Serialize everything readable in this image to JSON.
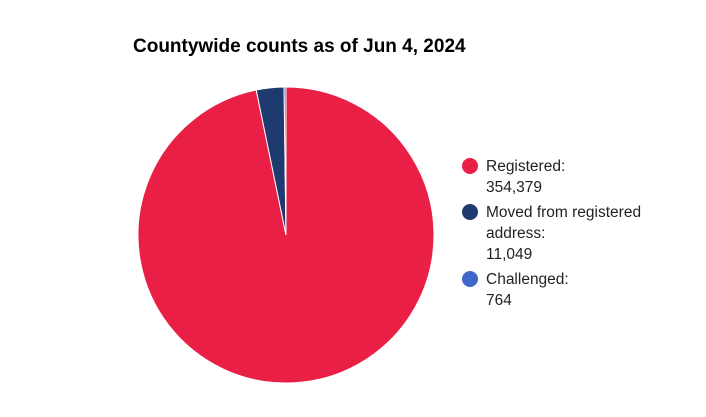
{
  "chart_data": {
    "type": "pie",
    "title": "Countywide counts as of Jun 4, 2024",
    "legend_position": "right",
    "slices": [
      {
        "label": "Registered:",
        "value": 354379,
        "display": "354,379",
        "color": "#ea1f45"
      },
      {
        "label": "Moved from registered address:",
        "value": 11049,
        "display": "11,049",
        "color": "#1f3a6e"
      },
      {
        "label": "Challenged:",
        "value": 764,
        "display": "764",
        "color": "#3f66c8"
      }
    ]
  }
}
